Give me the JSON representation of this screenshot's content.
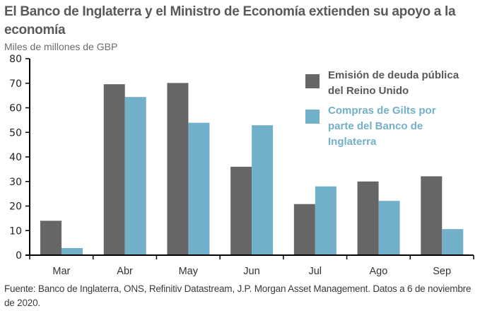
{
  "title": "El Banco de Inglaterra y el Ministro de Economía extienden su apoyo a la economía",
  "subtitle": "Miles de millones de GBP",
  "source": "Fuente: Banco de Inglaterra, ONS, Refinitiv Datastream, J.P. Morgan Asset Management. Datos a 6 de noviembre de 2020.",
  "colors": {
    "series1": "#666666",
    "series2": "#72b0c9",
    "axis": "#000000"
  },
  "chart_data": {
    "type": "bar",
    "title": "El Banco de Inglaterra y el Ministro de Economía extienden su apoyo a la economía",
    "ylabel": "Miles de millones de GBP",
    "xlabel": "",
    "categories": [
      "Mar",
      "Abr",
      "May",
      "Jun",
      "Jul",
      "Ago",
      "Sep"
    ],
    "series": [
      {
        "name": "Emisión de deuda pública del Reino Unido",
        "legend_lines": [
          "Emisión de deuda pública",
          "del Reino Unido"
        ],
        "color": "#666666",
        "values": [
          14,
          69.6,
          70.1,
          36,
          20.8,
          30,
          32.1
        ]
      },
      {
        "name": "Compras de Gilts por parte del Banco de Inglaterra",
        "legend_lines": [
          "Compras de Gilts por",
          "parte del Banco de",
          "Inglaterra"
        ],
        "color": "#72b0c9",
        "values": [
          2.9,
          64.4,
          53.9,
          52.9,
          28,
          22.1,
          10.6
        ]
      }
    ],
    "ylim": [
      0,
      80
    ],
    "yticks": [
      0,
      10,
      20,
      30,
      40,
      50,
      60,
      70,
      80
    ],
    "grid": false,
    "legend_position": "top-right"
  }
}
